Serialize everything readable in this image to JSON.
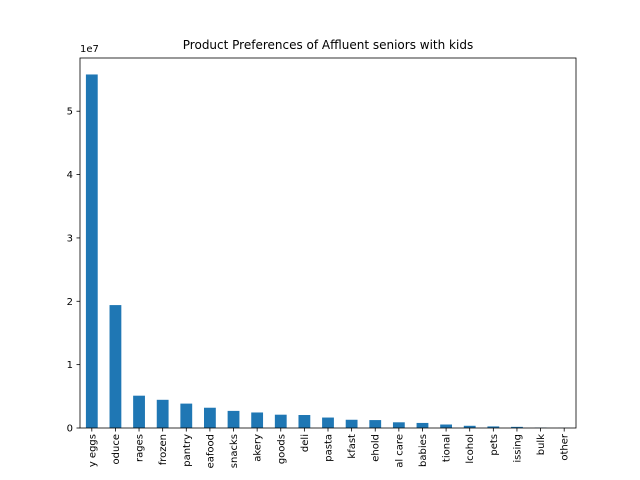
{
  "chart_data": {
    "type": "bar",
    "title": "Product Preferences of Affluent seniors with kids",
    "xlabel": "",
    "ylabel": "",
    "offset_text": "1e7",
    "scale": 10000000,
    "ylim": [
      0,
      58400000
    ],
    "yticks": [
      0,
      1,
      2,
      3,
      4,
      5
    ],
    "grid": false,
    "legend": "none",
    "bar_color": "#1f77b4",
    "categories": [
      "dairy eggs",
      "produce",
      "beverages",
      "frozen",
      "pantry",
      "meat seafood",
      "snacks",
      "bakery",
      "canned goods",
      "deli",
      "dry goods pasta",
      "breakfast",
      "household",
      "personal care",
      "babies",
      "international",
      "alcohol",
      "pets",
      "missing",
      "bulk",
      "other"
    ],
    "visible_labels": [
      "y eggs",
      "oduce",
      "rages",
      "frozen",
      "pantry",
      "eafood",
      "snacks",
      "akery",
      "goods",
      "deli",
      "pasta",
      "kfast",
      "ehold",
      "al care",
      "babies",
      "tional",
      "lcohol",
      "pets",
      "issing",
      "bulk",
      "other"
    ],
    "values": [
      55800000,
      19400000,
      5100000,
      4450000,
      3850000,
      3200000,
      2700000,
      2450000,
      2100000,
      2050000,
      1650000,
      1300000,
      1250000,
      900000,
      800000,
      550000,
      350000,
      250000,
      180000,
      50000,
      20000
    ]
  }
}
